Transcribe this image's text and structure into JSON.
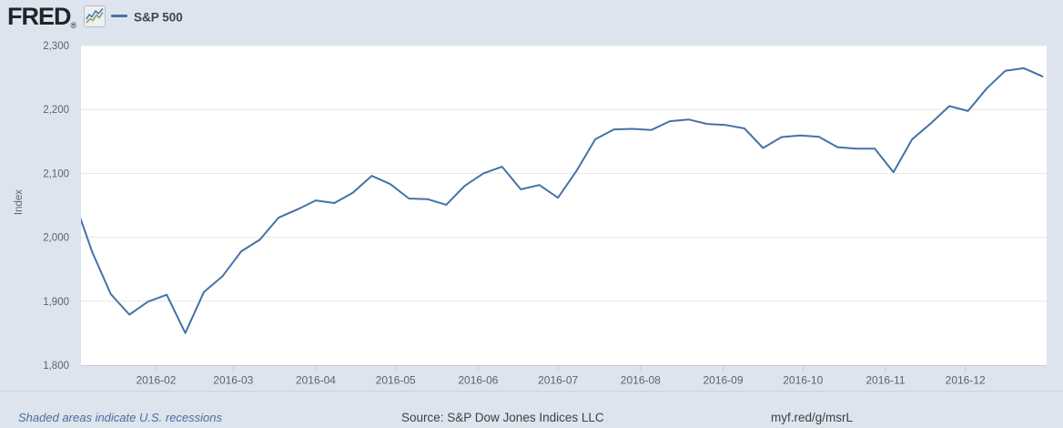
{
  "header": {
    "brand": "FRED",
    "registered": "®",
    "legend": {
      "label": "S&P 500",
      "swatch_color": "#4572a7"
    }
  },
  "footer": {
    "recession_note": "Shaded areas indicate U.S. recessions",
    "source": "Source: S&P Dow Jones Indices LLC",
    "permalink": "myf.red/g/msrL"
  },
  "colors": {
    "background": "#dde4ee",
    "plot_background": "#ffffff",
    "series_line": "#4572a7",
    "gridline": "#e6e6e6",
    "axis_line": "#c7cad0",
    "tick_mark": "#c2c9d4",
    "axis_text": "#5f6368",
    "logo_text": "#21252a",
    "legend_text": "#3c454d",
    "footer_note_blue": "#4a6e9e",
    "footer_text": "#404040"
  },
  "chart_data": {
    "type": "line",
    "title": "S&P 500",
    "xlabel": "",
    "ylabel": "Index",
    "ylim": [
      1800,
      2300
    ],
    "grid": "horizontal-only",
    "legend_position": "top-left",
    "yticks": [
      {
        "value": 1800,
        "label": "1,800"
      },
      {
        "value": 1900,
        "label": "1,900"
      },
      {
        "value": 2000,
        "label": "2,000"
      },
      {
        "value": 2100,
        "label": "2,100"
      },
      {
        "value": 2200,
        "label": "2,200"
      },
      {
        "value": 2300,
        "label": "2,300"
      }
    ],
    "xticks": [
      {
        "label": "2016-02",
        "date": "2016-02-01"
      },
      {
        "label": "2016-03",
        "date": "2016-03-01"
      },
      {
        "label": "2016-04",
        "date": "2016-04-01"
      },
      {
        "label": "2016-05",
        "date": "2016-05-01"
      },
      {
        "label": "2016-06",
        "date": "2016-06-01"
      },
      {
        "label": "2016-07",
        "date": "2016-07-01"
      },
      {
        "label": "2016-08",
        "date": "2016-08-01"
      },
      {
        "label": "2016-09",
        "date": "2016-09-01"
      },
      {
        "label": "2016-10",
        "date": "2016-10-01"
      },
      {
        "label": "2016-11",
        "date": "2016-11-01"
      },
      {
        "label": "2016-12",
        "date": "2016-12-01"
      }
    ],
    "series": [
      {
        "name": "S&P 500",
        "color": "#4572a7",
        "x": [
          "2016-01-01",
          "2016-01-08",
          "2016-01-15",
          "2016-01-22",
          "2016-01-29",
          "2016-02-05",
          "2016-02-12",
          "2016-02-19",
          "2016-02-26",
          "2016-03-04",
          "2016-03-11",
          "2016-03-18",
          "2016-03-25",
          "2016-04-01",
          "2016-04-08",
          "2016-04-15",
          "2016-04-22",
          "2016-04-29",
          "2016-05-06",
          "2016-05-13",
          "2016-05-20",
          "2016-05-27",
          "2016-06-03",
          "2016-06-10",
          "2016-06-17",
          "2016-06-24",
          "2016-07-01",
          "2016-07-08",
          "2016-07-15",
          "2016-07-22",
          "2016-07-29",
          "2016-08-05",
          "2016-08-12",
          "2016-08-19",
          "2016-08-26",
          "2016-09-02",
          "2016-09-09",
          "2016-09-16",
          "2016-09-23",
          "2016-09-30",
          "2016-10-07",
          "2016-10-14",
          "2016-10-21",
          "2016-10-28",
          "2016-11-04",
          "2016-11-11",
          "2016-11-18",
          "2016-11-25",
          "2016-12-02",
          "2016-12-09",
          "2016-12-16",
          "2016-12-23",
          "2016-12-30"
        ],
        "values": [
          2060.5,
          1977.0,
          1911.0,
          1879.1,
          1899.5,
          1910.1,
          1850.3,
          1914.5,
          1939.3,
          1978.1,
          1996.4,
          2030.6,
          2043.5,
          2057.7,
          2053.5,
          2069.9,
          2096.1,
          2083.2,
          2060.7,
          2059.7,
          2050.8,
          2080.8,
          2100.2,
          2110.4,
          2075.0,
          2081.7,
          2061.8,
          2104.3,
          2153.4,
          2168.8,
          2169.6,
          2167.8,
          2181.6,
          2184.3,
          2177.3,
          2175.7,
          2170.4,
          2139.7,
          2156.8,
          2159.4,
          2157.2,
          2141.0,
          2138.6,
          2138.7,
          2101.9,
          2153.3,
          2178.1,
          2205.2,
          2197.6,
          2232.8,
          2260.4,
          2264.6,
          2251.7
        ]
      }
    ]
  }
}
